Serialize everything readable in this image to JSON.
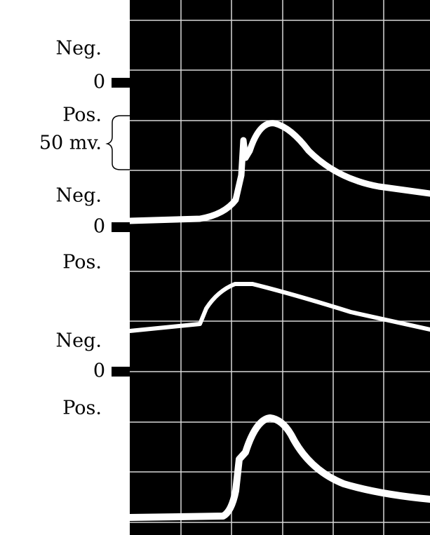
{
  "labels": [
    "Neg.",
    "0",
    "Pos.",
    "50 mv.",
    "Neg.",
    "0",
    "Pos.",
    "Neg.",
    "0",
    "Pos."
  ]
}
